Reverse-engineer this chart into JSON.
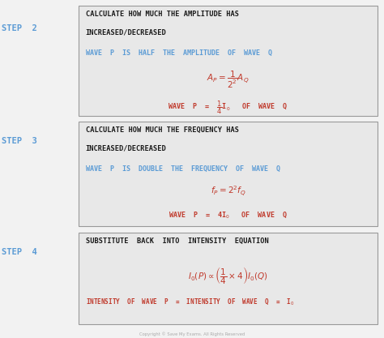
{
  "background_color": "#f2f2f2",
  "box_color": "#e8e8e8",
  "box_edge_color": "#999999",
  "step_color": "#5b9bd5",
  "black_text_color": "#1a1a1a",
  "blue_text_color": "#5b9bd5",
  "dark_red_color": "#c0392b",
  "copyright_text": "Copyright © Save My Exams. All Rights Reserved",
  "step2_label": "STEP  2",
  "step3_label": "STEP  3",
  "step4_label": "STEP  4",
  "step2_title1": "CALCULATE HOW MUCH THE AMPLITUDE HAS",
  "step2_title2": "INCREASED/DECREASED",
  "step2_blue": "WAVE  P  IS  HALF  THE  AMPLITUDE  OF  WAVE  Q",
  "step2_red": "WAVE  P  =  $\\frac{1}{4}$I$_0$   OF  WAVE  Q",
  "step3_title1": "CALCULATE HOW MUCH THE FREQUENCY HAS",
  "step3_title2": "INCREASED/DECREASED",
  "step3_blue": "WAVE  P  IS  DOUBLE  THE  FREQUENCY  OF  WAVE  Q",
  "step3_red": "WAVE  P  =  4I$_0$   OF  WAVE  Q",
  "step4_title1": "SUBSTITUTE  BACK  INTO  INTENSITY  EQUATION",
  "step4_red": "INTENSITY  OF  WAVE  P  =  INTENSITY  OF  WAVE  Q  =  I$_0$"
}
